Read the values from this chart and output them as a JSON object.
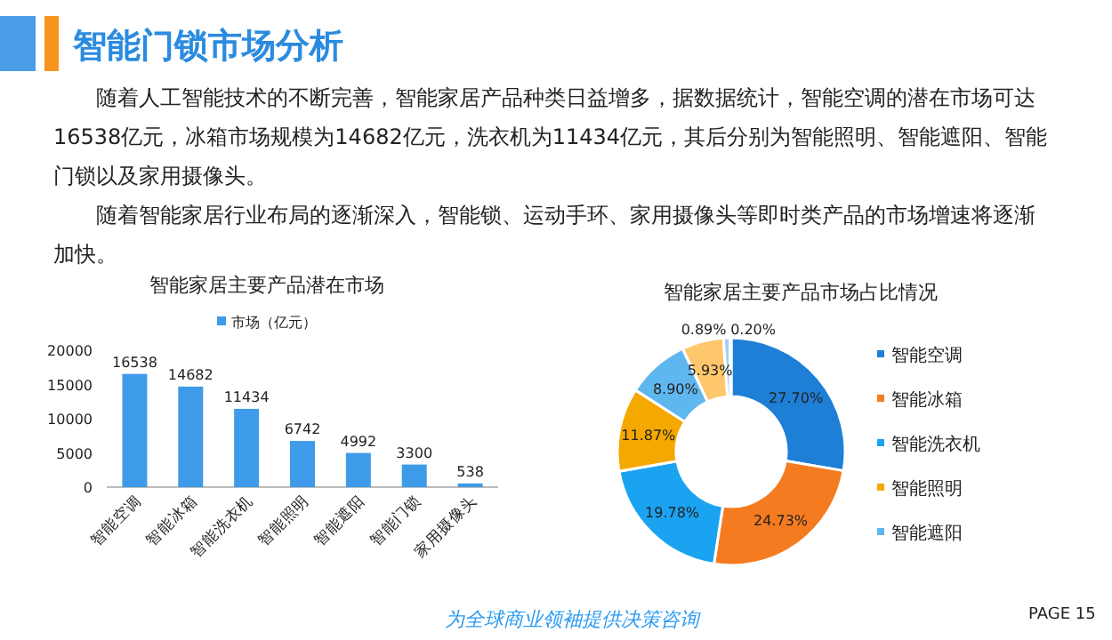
{
  "chart_data": [
    {
      "type": "other",
      "title": "智能门锁市场分析",
      "annotations": [
        "随着人工智能技术的不断完善，智能家居产品种类日益增多，据数据统计，智能空调的潜在市场可达16538亿元，冰箱市场规模为14682亿元，洗衣机为11434亿元，其后分别为智能照明、智能遮阳、智能门锁以及家用摄像头。",
        "随着智能家居行业布局的逐渐深入，智能锁、运动手环、家用摄像头等即时类产品的市场增速将逐渐加快。",
        "为全球商业领袖提供决策咨询",
        "PAGE 15"
      ]
    },
    {
      "type": "bar",
      "title": "智能家居主要产品潜在市场",
      "categories": [
        "智能空调",
        "智能冰箱",
        "智能洗衣机",
        "智能照明",
        "智能遮阳",
        "智能门锁",
        "家用摄像头"
      ],
      "series": [
        {
          "name": "市场（亿元）",
          "color": "#3d9be9",
          "values": [
            16538,
            14682,
            11434,
            6742,
            4992,
            3300,
            538
          ]
        }
      ],
      "ylim": [
        0,
        20000
      ],
      "yticks": [
        0,
        5000,
        10000,
        15000,
        20000
      ],
      "data_labels": true,
      "legend": "top",
      "grid": false
    },
    {
      "type": "donut",
      "title": "智能家居主要产品市场占比情况",
      "categories": [
        "智能空调",
        "智能冰箱",
        "智能洗衣机",
        "智能照明",
        "智能遮阳",
        null,
        null,
        null
      ],
      "values": [
        27.7,
        24.73,
        19.78,
        11.87,
        8.9,
        5.93,
        0.89,
        0.2
      ],
      "colors": [
        "#1e7fd6",
        "#f47b20",
        "#1aa3f0",
        "#f5a800",
        "#5fb7ef",
        "#ffc76b",
        "#9fd0f5",
        "#7fb0e0"
      ],
      "value_labels": [
        "27.70%",
        "24.73%",
        "19.78%",
        "11.87%",
        "8.90%",
        "5.93%",
        "0.89%",
        "0.20%"
      ],
      "legend": "right"
    }
  ]
}
